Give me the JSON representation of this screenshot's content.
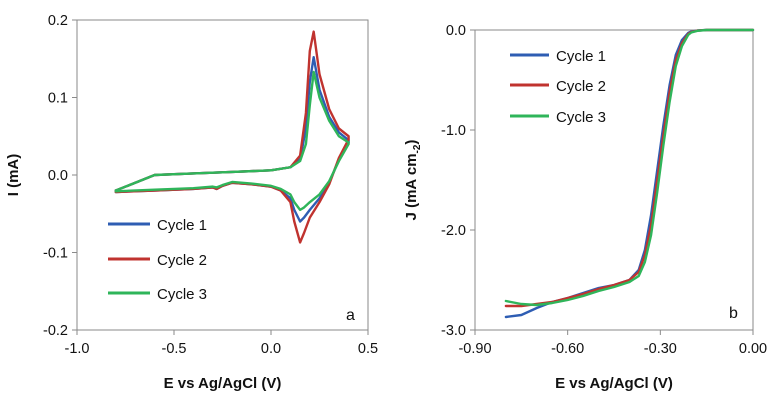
{
  "chart_data": [
    {
      "type": "line",
      "panel_label": "a",
      "xlabel": "E vs Ag/AgCl (V)",
      "ylabel": "I (mA)",
      "xlim": [
        -1.0,
        0.5
      ],
      "ylim": [
        -0.2,
        0.2
      ],
      "xticks": [
        -1.0,
        -0.5,
        0.0,
        0.5
      ],
      "xtick_labels": [
        "-1.0",
        "-0.5",
        "0.0",
        "0.5"
      ],
      "yticks": [
        -0.2,
        -0.1,
        0.0,
        0.1,
        0.2
      ],
      "ytick_labels": [
        "-0.2",
        "-0.1",
        "0.0",
        "0.1",
        "0.2"
      ],
      "legend_position": "bottom-left",
      "grid": false,
      "series": [
        {
          "name": "Cycle 1",
          "color": "#2e5db3",
          "x": [
            -0.8,
            -0.6,
            -0.4,
            -0.2,
            0.0,
            0.1,
            0.15,
            0.18,
            0.2,
            0.22,
            0.25,
            0.3,
            0.35,
            0.4,
            0.4,
            0.35,
            0.3,
            0.25,
            0.2,
            0.17,
            0.15,
            0.12,
            0.1,
            0.05,
            0.0,
            -0.1,
            -0.2,
            -0.25,
            -0.28,
            -0.3,
            -0.4,
            -0.6,
            -0.8,
            -0.8
          ],
          "y": [
            -0.02,
            0.0,
            0.002,
            0.004,
            0.006,
            0.01,
            0.02,
            0.06,
            0.12,
            0.152,
            0.11,
            0.075,
            0.055,
            0.045,
            0.042,
            0.02,
            -0.01,
            -0.03,
            -0.045,
            -0.055,
            -0.06,
            -0.045,
            -0.03,
            -0.02,
            -0.015,
            -0.012,
            -0.01,
            -0.014,
            -0.018,
            -0.016,
            -0.018,
            -0.02,
            -0.022,
            -0.02
          ]
        },
        {
          "name": "Cycle 2",
          "color": "#c0332f",
          "x": [
            -0.8,
            -0.6,
            -0.4,
            -0.2,
            0.0,
            0.1,
            0.15,
            0.18,
            0.2,
            0.22,
            0.25,
            0.3,
            0.35,
            0.4,
            0.4,
            0.35,
            0.3,
            0.25,
            0.2,
            0.17,
            0.15,
            0.12,
            0.1,
            0.05,
            0.0,
            -0.1,
            -0.2,
            -0.25,
            -0.28,
            -0.3,
            -0.4,
            -0.6,
            -0.8,
            -0.8
          ],
          "y": [
            -0.02,
            0.0,
            0.002,
            0.004,
            0.006,
            0.01,
            0.025,
            0.08,
            0.16,
            0.185,
            0.13,
            0.085,
            0.06,
            0.05,
            0.046,
            0.022,
            -0.012,
            -0.035,
            -0.055,
            -0.075,
            -0.087,
            -0.06,
            -0.035,
            -0.02,
            -0.015,
            -0.012,
            -0.01,
            -0.014,
            -0.018,
            -0.016,
            -0.018,
            -0.02,
            -0.022,
            -0.02
          ]
        },
        {
          "name": "Cycle 3",
          "color": "#2fb55a",
          "x": [
            -0.8,
            -0.6,
            -0.4,
            -0.2,
            0.0,
            0.1,
            0.15,
            0.18,
            0.2,
            0.22,
            0.25,
            0.3,
            0.35,
            0.4,
            0.4,
            0.35,
            0.3,
            0.25,
            0.2,
            0.17,
            0.15,
            0.12,
            0.1,
            0.05,
            0.0,
            -0.1,
            -0.2,
            -0.25,
            -0.28,
            -0.3,
            -0.4,
            -0.6,
            -0.8,
            -0.8
          ],
          "y": [
            -0.02,
            0.0,
            0.002,
            0.004,
            0.006,
            0.01,
            0.018,
            0.04,
            0.09,
            0.133,
            0.1,
            0.07,
            0.05,
            0.042,
            0.04,
            0.018,
            -0.008,
            -0.025,
            -0.035,
            -0.042,
            -0.045,
            -0.035,
            -0.025,
            -0.018,
            -0.014,
            -0.011,
            -0.009,
            -0.013,
            -0.016,
            -0.015,
            -0.017,
            -0.019,
            -0.021,
            -0.02
          ]
        }
      ]
    },
    {
      "type": "line",
      "panel_label": "b",
      "xlabel": "E vs Ag/AgCl (V)",
      "ylabel": "J (mA cm",
      "ylabel_subscript": "-2",
      "ylabel_close": ")",
      "xlim": [
        -0.9,
        0.0
      ],
      "ylim": [
        -3.0,
        0.0
      ],
      "xticks": [
        -0.9,
        -0.6,
        -0.3,
        0.0
      ],
      "xtick_labels": [
        "-0.90",
        "-0.60",
        "-0.30",
        "0.00"
      ],
      "yticks": [
        -3.0,
        -2.0,
        -1.0,
        0.0
      ],
      "ytick_labels": [
        "-3.0",
        "-2.0",
        "-1.0",
        "0.0"
      ],
      "legend_position": "top-left",
      "grid": false,
      "series": [
        {
          "name": "Cycle 1",
          "color": "#2e5db3",
          "x": [
            -0.8,
            -0.75,
            -0.7,
            -0.65,
            -0.6,
            -0.55,
            -0.5,
            -0.45,
            -0.4,
            -0.37,
            -0.35,
            -0.33,
            -0.31,
            -0.29,
            -0.27,
            -0.25,
            -0.23,
            -0.21,
            -0.2,
            -0.18,
            -0.15,
            -0.1,
            -0.05,
            0.0
          ],
          "y": [
            -2.87,
            -2.85,
            -2.78,
            -2.72,
            -2.68,
            -2.63,
            -2.58,
            -2.55,
            -2.5,
            -2.4,
            -2.2,
            -1.85,
            -1.4,
            -0.95,
            -0.55,
            -0.25,
            -0.1,
            -0.03,
            -0.015,
            -0.005,
            0.0,
            0.0,
            0.0,
            0.0
          ]
        },
        {
          "name": "Cycle 2",
          "color": "#c0332f",
          "x": [
            -0.8,
            -0.75,
            -0.7,
            -0.65,
            -0.6,
            -0.55,
            -0.5,
            -0.45,
            -0.4,
            -0.37,
            -0.35,
            -0.33,
            -0.31,
            -0.29,
            -0.27,
            -0.25,
            -0.23,
            -0.21,
            -0.2,
            -0.18,
            -0.15,
            -0.1,
            -0.05,
            0.0
          ],
          "y": [
            -2.76,
            -2.76,
            -2.74,
            -2.72,
            -2.68,
            -2.64,
            -2.59,
            -2.55,
            -2.5,
            -2.42,
            -2.25,
            -1.95,
            -1.5,
            -1.05,
            -0.62,
            -0.3,
            -0.13,
            -0.04,
            -0.02,
            -0.006,
            0.0,
            0.0,
            0.0,
            0.0
          ]
        },
        {
          "name": "Cycle 3",
          "color": "#2fb55a",
          "x": [
            -0.8,
            -0.75,
            -0.7,
            -0.65,
            -0.6,
            -0.55,
            -0.5,
            -0.45,
            -0.4,
            -0.37,
            -0.35,
            -0.33,
            -0.31,
            -0.29,
            -0.27,
            -0.25,
            -0.23,
            -0.21,
            -0.2,
            -0.18,
            -0.15,
            -0.1,
            -0.05,
            0.0
          ],
          "y": [
            -2.71,
            -2.74,
            -2.75,
            -2.73,
            -2.7,
            -2.66,
            -2.61,
            -2.57,
            -2.52,
            -2.46,
            -2.32,
            -2.05,
            -1.62,
            -1.15,
            -0.72,
            -0.36,
            -0.16,
            -0.05,
            -0.025,
            -0.008,
            0.0,
            0.0,
            0.0,
            0.0
          ]
        }
      ]
    }
  ]
}
